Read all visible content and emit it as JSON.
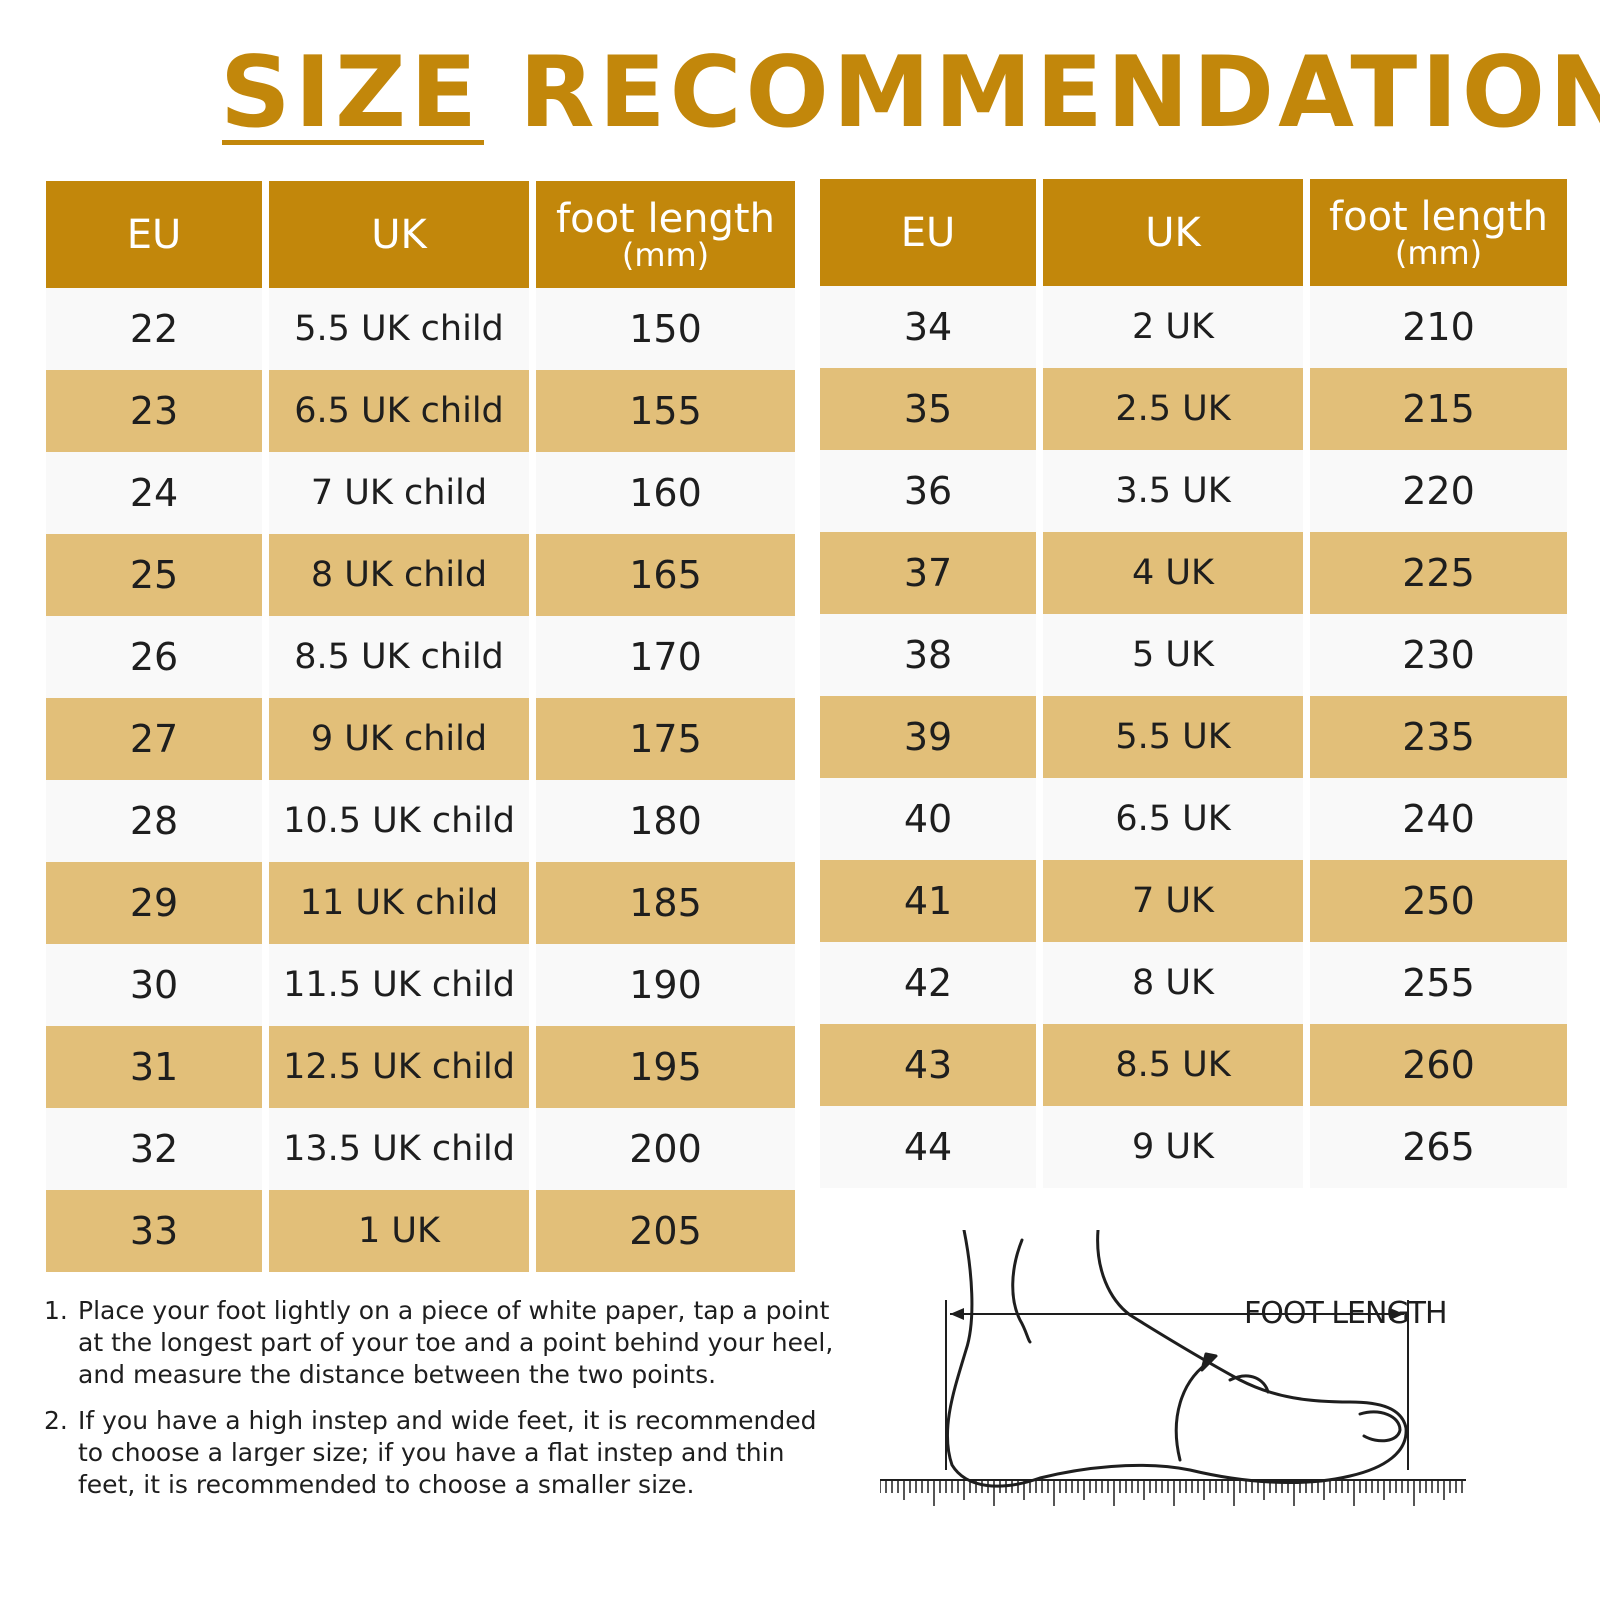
{
  "title": "SIZE RECOMMENDATION",
  "table_headers": {
    "eu": "EU",
    "uk": "UK",
    "foot_length": "foot length",
    "foot_length_unit": "(mm)"
  },
  "left_rows": [
    {
      "eu": "22",
      "uk": "5.5 UK child",
      "mm": "150"
    },
    {
      "eu": "23",
      "uk": "6.5 UK child",
      "mm": "155"
    },
    {
      "eu": "24",
      "uk": "7 UK child",
      "mm": "160"
    },
    {
      "eu": "25",
      "uk": "8 UK child",
      "mm": "165"
    },
    {
      "eu": "26",
      "uk": "8.5 UK child",
      "mm": "170"
    },
    {
      "eu": "27",
      "uk": "9 UK child",
      "mm": "175"
    },
    {
      "eu": "28",
      "uk": "10.5 UK child",
      "mm": "180"
    },
    {
      "eu": "29",
      "uk": "11 UK child",
      "mm": "185"
    },
    {
      "eu": "30",
      "uk": "11.5 UK child",
      "mm": "190"
    },
    {
      "eu": "31",
      "uk": "12.5 UK child",
      "mm": "195"
    },
    {
      "eu": "32",
      "uk": "13.5 UK child",
      "mm": "200"
    },
    {
      "eu": "33",
      "uk": "1 UK",
      "mm": "205"
    }
  ],
  "right_rows": [
    {
      "eu": "34",
      "uk": "2 UK",
      "mm": "210"
    },
    {
      "eu": "35",
      "uk": "2.5 UK",
      "mm": "215"
    },
    {
      "eu": "36",
      "uk": "3.5 UK",
      "mm": "220"
    },
    {
      "eu": "37",
      "uk": "4 UK",
      "mm": "225"
    },
    {
      "eu": "38",
      "uk": "5 UK",
      "mm": "230"
    },
    {
      "eu": "39",
      "uk": "5.5 UK",
      "mm": "235"
    },
    {
      "eu": "40",
      "uk": "6.5 UK",
      "mm": "240"
    },
    {
      "eu": "41",
      "uk": "7 UK",
      "mm": "250"
    },
    {
      "eu": "42",
      "uk": "8 UK",
      "mm": "255"
    },
    {
      "eu": "43",
      "uk": "8.5 UK",
      "mm": "260"
    },
    {
      "eu": "44",
      "uk": "9 UK",
      "mm": "265"
    }
  ],
  "notes": [
    {
      "num": "1.",
      "text": "Place your foot lightly on a piece of white paper, tap a point at the longest part of your toe and a point behind your heel, and measure the distance between the two points."
    },
    {
      "num": "2.",
      "text": "If you have a high instep and wide feet, it is recommended to choose a larger size; if you have a flat instep and thin feet, it is recommended to choose a smaller size."
    }
  ],
  "diagram": {
    "label": "FOOT LENGTH",
    "icon": "foot-measurement-icon"
  },
  "colors": {
    "accent": "#c2870b",
    "row_tan": "#e2bf79",
    "row_light": "#f9f9f9"
  }
}
